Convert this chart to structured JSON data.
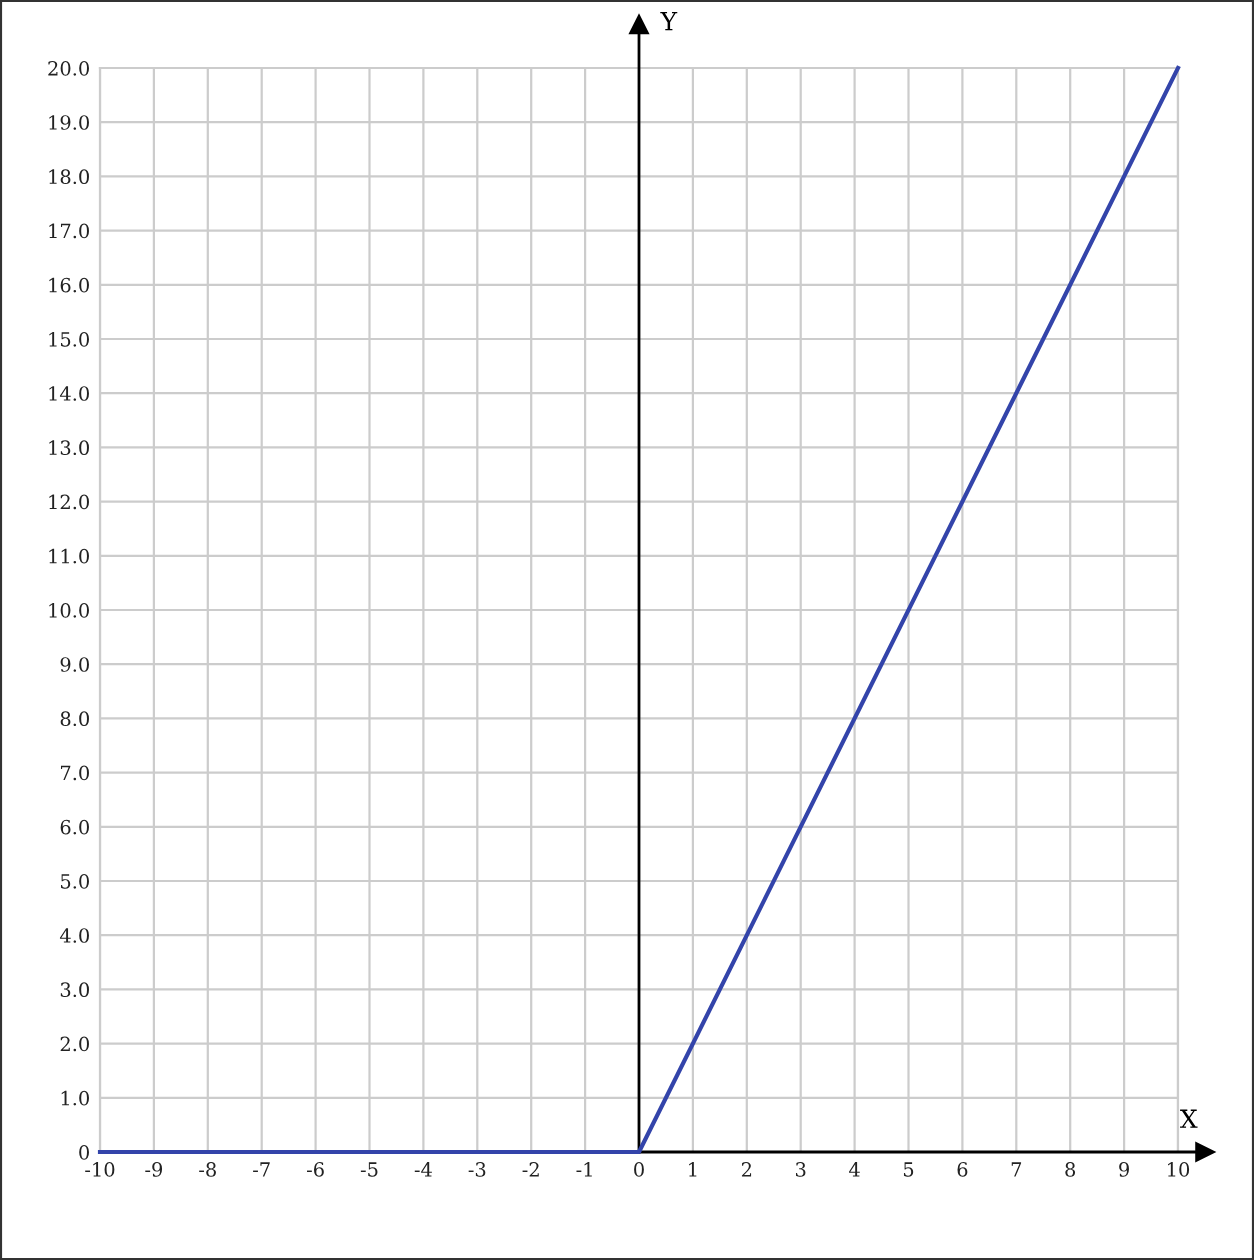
{
  "chart_data": {
    "type": "line",
    "xlabel": "X",
    "ylabel": "Y",
    "x": [
      -10,
      0,
      10
    ],
    "series": [
      {
        "color": "#3344aa",
        "values": [
          0,
          0,
          20
        ]
      }
    ],
    "xlim": [
      -10,
      10
    ],
    "ylim": [
      0,
      20
    ],
    "xticks": [
      -10,
      -9,
      -8,
      -7,
      -6,
      -5,
      -4,
      -3,
      -2,
      -1,
      0,
      1,
      2,
      3,
      4,
      5,
      6,
      7,
      8,
      9,
      10
    ],
    "yticks": [
      0,
      {
        "value": 1,
        "label": "1.0"
      },
      {
        "value": 2,
        "label": "2.0"
      },
      {
        "value": 3,
        "label": "3.0"
      },
      {
        "value": 4,
        "label": "4.0"
      },
      {
        "value": 5,
        "label": "5.0"
      },
      {
        "value": 6,
        "label": "6.0"
      },
      {
        "value": 7,
        "label": "7.0"
      },
      {
        "value": 8,
        "label": "8.0"
      },
      {
        "value": 9,
        "label": "9.0"
      },
      {
        "value": 10,
        "label": "10.0"
      },
      {
        "value": 11,
        "label": "11.0"
      },
      {
        "value": 12,
        "label": "12.0"
      },
      {
        "value": 13,
        "label": "13.0"
      },
      {
        "value": 14,
        "label": "14.0"
      },
      {
        "value": 15,
        "label": "15.0"
      },
      {
        "value": 16,
        "label": "16.0"
      },
      {
        "value": 17,
        "label": "17.0"
      },
      {
        "value": 18,
        "label": "18.0"
      },
      {
        "value": 19,
        "label": "19.0"
      },
      {
        "value": 20,
        "label": "20.0"
      }
    ],
    "grid": true
  }
}
